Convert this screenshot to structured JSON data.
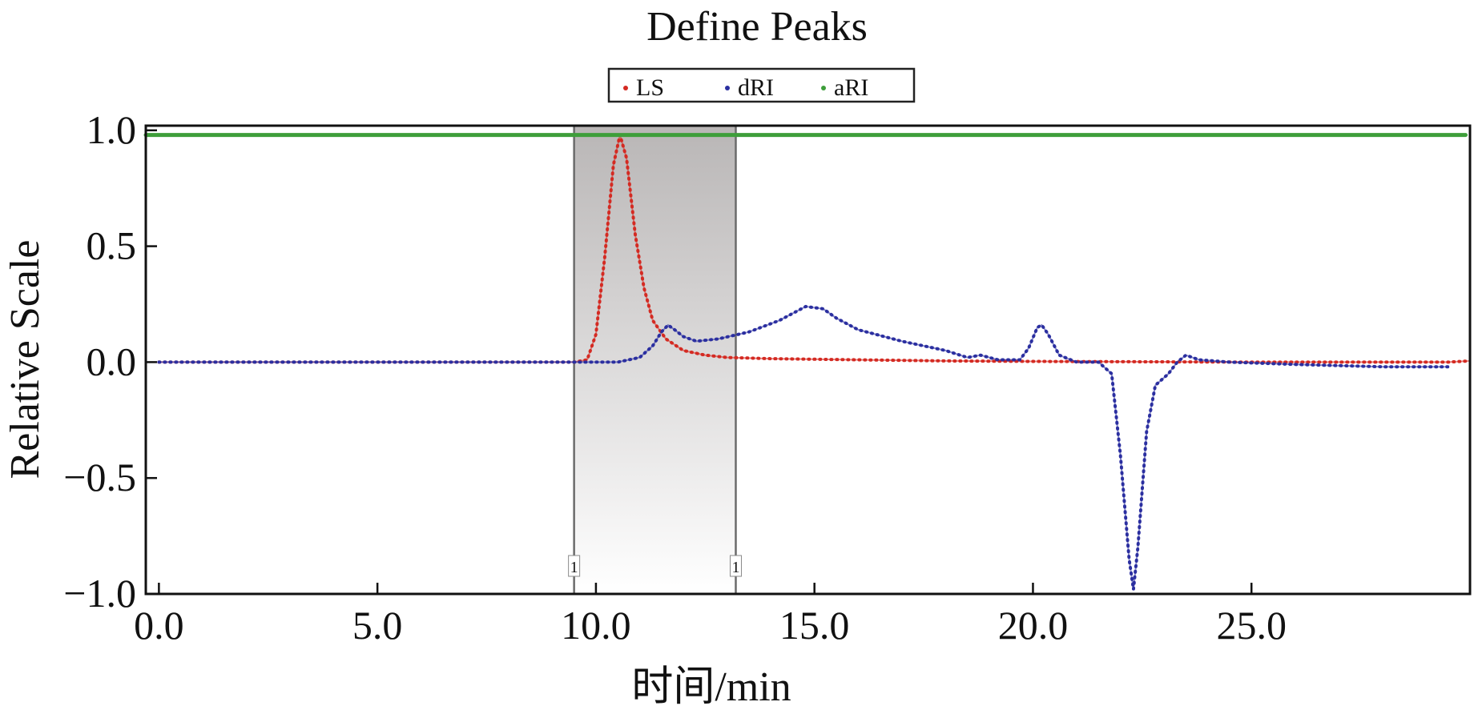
{
  "chart_data": {
    "type": "line",
    "title": "Define Peaks",
    "xlabel": "时间/min",
    "ylabel": "Relative Scale",
    "xlim": [
      -0.3,
      30.0
    ],
    "ylim": [
      -1.0,
      1.02
    ],
    "x_ticks": [
      0,
      5,
      10,
      15,
      20,
      25
    ],
    "x_tick_labels": [
      "0.0",
      "5.0",
      "10.0",
      "15.0",
      "20.0",
      "25.0"
    ],
    "y_ticks": [
      1.0,
      0.5,
      0.0,
      -0.5,
      -1.0
    ],
    "y_tick_labels": [
      "1.0",
      "0.5",
      "0.0",
      "−0.5",
      "−1.0"
    ],
    "grid": false,
    "legend_position": "top-center",
    "legend": [
      "LS",
      "dRI",
      "aRI"
    ],
    "peak_region": {
      "x_start": 9.5,
      "x_end": 13.2,
      "marker_label": "1"
    },
    "series": [
      {
        "name": "LS",
        "color": "#d42a22",
        "style": "dotted",
        "points": [
          [
            0,
            0.0
          ],
          [
            5,
            0.0
          ],
          [
            9.5,
            0.0
          ],
          [
            9.8,
            0.01
          ],
          [
            10.0,
            0.12
          ],
          [
            10.2,
            0.45
          ],
          [
            10.4,
            0.85
          ],
          [
            10.55,
            0.98
          ],
          [
            10.7,
            0.88
          ],
          [
            10.9,
            0.55
          ],
          [
            11.1,
            0.32
          ],
          [
            11.3,
            0.18
          ],
          [
            11.6,
            0.1
          ],
          [
            12.0,
            0.05
          ],
          [
            12.5,
            0.03
          ],
          [
            13.0,
            0.02
          ],
          [
            14.0,
            0.015
          ],
          [
            16.0,
            0.01
          ],
          [
            18.0,
            0.005
          ],
          [
            20.0,
            0.003
          ],
          [
            25.0,
            0.0
          ],
          [
            29.5,
            0.0
          ],
          [
            30.0,
            0.005
          ]
        ]
      },
      {
        "name": "dRI",
        "color": "#2b2fa0",
        "style": "dotted",
        "points": [
          [
            0,
            0.0
          ],
          [
            5,
            0.0
          ],
          [
            9.5,
            0.0
          ],
          [
            10.5,
            0.0
          ],
          [
            11.0,
            0.02
          ],
          [
            11.3,
            0.07
          ],
          [
            11.5,
            0.13
          ],
          [
            11.65,
            0.16
          ],
          [
            11.8,
            0.14
          ],
          [
            12.0,
            0.11
          ],
          [
            12.3,
            0.09
          ],
          [
            12.8,
            0.1
          ],
          [
            13.5,
            0.13
          ],
          [
            14.2,
            0.18
          ],
          [
            14.8,
            0.24
          ],
          [
            15.2,
            0.23
          ],
          [
            15.5,
            0.19
          ],
          [
            16.0,
            0.14
          ],
          [
            17.0,
            0.09
          ],
          [
            18.0,
            0.05
          ],
          [
            18.5,
            0.02
          ],
          [
            18.8,
            0.03
          ],
          [
            19.2,
            0.01
          ],
          [
            19.7,
            0.01
          ],
          [
            19.9,
            0.06
          ],
          [
            20.1,
            0.15
          ],
          [
            20.2,
            0.16
          ],
          [
            20.35,
            0.12
          ],
          [
            20.6,
            0.03
          ],
          [
            21.0,
            0.0
          ],
          [
            21.5,
            0.0
          ],
          [
            21.8,
            -0.05
          ],
          [
            22.0,
            -0.4
          ],
          [
            22.2,
            -0.85
          ],
          [
            22.3,
            -0.98
          ],
          [
            22.4,
            -0.8
          ],
          [
            22.6,
            -0.3
          ],
          [
            22.8,
            -0.1
          ],
          [
            23.1,
            -0.05
          ],
          [
            23.3,
            0.0
          ],
          [
            23.5,
            0.03
          ],
          [
            23.8,
            0.01
          ],
          [
            24.5,
            0.0
          ],
          [
            26.0,
            -0.01
          ],
          [
            28.0,
            -0.02
          ],
          [
            29.5,
            -0.02
          ]
        ]
      },
      {
        "name": "aRI",
        "color": "#3e9e3a",
        "style": "solid",
        "points": [
          [
            -0.3,
            0.98
          ],
          [
            29.9,
            0.98
          ]
        ]
      }
    ]
  }
}
